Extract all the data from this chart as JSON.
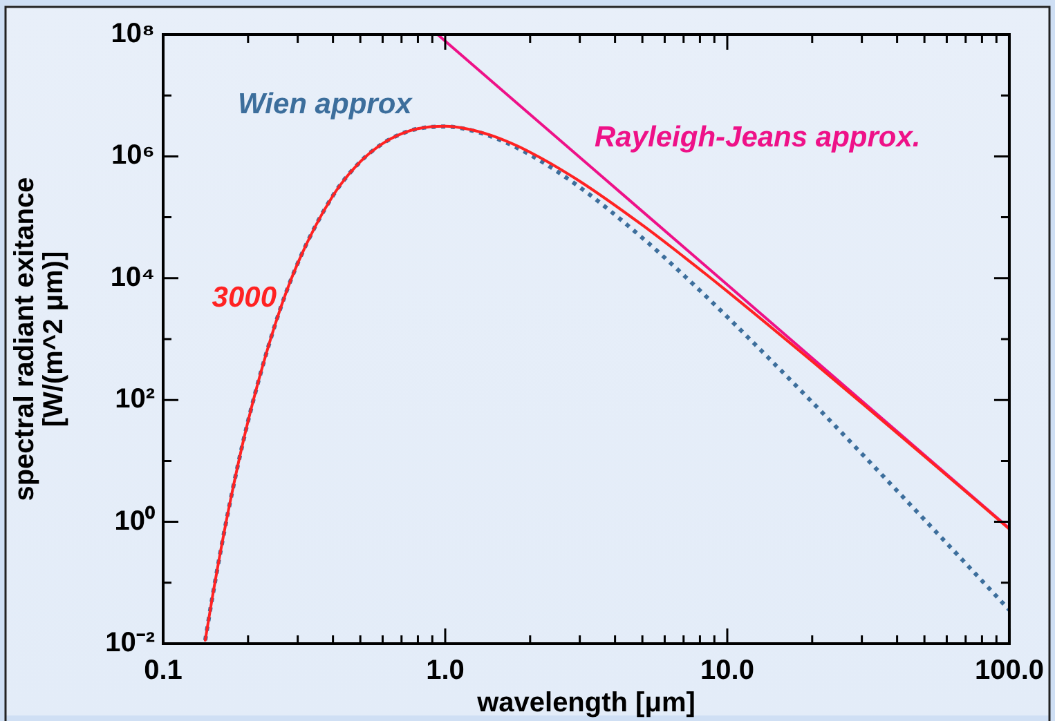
{
  "chart_data": {
    "type": "line",
    "xlabel": "wavelength [μm]",
    "ylabel": "spectral radiant exitance\n[W/(m^2 μm)]",
    "log": "xy",
    "grid": false,
    "legend": false,
    "marker": "none",
    "xlim": [
      0.1,
      100
    ],
    "ylim": [
      0.01,
      100000000
    ],
    "xticks": [
      {
        "value": 0.1,
        "label": "0.1"
      },
      {
        "value": 0.2,
        "label": null
      },
      {
        "value": 0.3,
        "label": null
      },
      {
        "value": 0.4,
        "label": null
      },
      {
        "value": 0.5,
        "label": null
      },
      {
        "value": 0.6,
        "label": null
      },
      {
        "value": 0.7,
        "label": null
      },
      {
        "value": 0.8,
        "label": null
      },
      {
        "value": 0.9,
        "label": null
      },
      {
        "value": 1,
        "label": "1.0"
      },
      {
        "value": 2,
        "label": null
      },
      {
        "value": 3,
        "label": null
      },
      {
        "value": 4,
        "label": null
      },
      {
        "value": 5,
        "label": null
      },
      {
        "value": 6,
        "label": null
      },
      {
        "value": 7,
        "label": null
      },
      {
        "value": 8,
        "label": null
      },
      {
        "value": 9,
        "label": null
      },
      {
        "value": 10,
        "label": "10.0"
      },
      {
        "value": 20,
        "label": null
      },
      {
        "value": 30,
        "label": null
      },
      {
        "value": 40,
        "label": null
      },
      {
        "value": 50,
        "label": null
      },
      {
        "value": 60,
        "label": null
      },
      {
        "value": 70,
        "label": null
      },
      {
        "value": 80,
        "label": null
      },
      {
        "value": 90,
        "label": null
      },
      {
        "value": 100,
        "label": "100.0"
      }
    ],
    "yticks": [
      {
        "value": 0.01,
        "label": "10⁻²"
      },
      {
        "value": 0.1,
        "label": null
      },
      {
        "value": 1,
        "label": "10⁰"
      },
      {
        "value": 10,
        "label": null
      },
      {
        "value": 100,
        "label": "10²"
      },
      {
        "value": 1000,
        "label": null
      },
      {
        "value": 10000,
        "label": "10⁴"
      },
      {
        "value": 100000,
        "label": null
      },
      {
        "value": 1000000,
        "label": "10⁶"
      },
      {
        "value": 10000000,
        "label": null
      },
      {
        "value": 100000000,
        "label": "10⁸"
      }
    ],
    "series": [
      {
        "name": "3000",
        "color": "#ff2222",
        "line_style": "solid",
        "x": [
          0.141,
          0.15,
          0.17,
          0.2,
          0.25,
          0.3,
          0.4,
          0.5,
          0.6,
          0.7,
          0.8,
          1,
          1.2,
          1.5,
          2,
          3,
          5,
          7,
          10,
          20,
          30,
          50,
          70,
          100
        ],
        "values": [
          0.0114,
          0.064,
          1.47,
          45.1,
          1790,
          17600,
          227000,
          817000,
          1625000,
          2357000,
          2851000,
          3118000,
          2817000,
          2100000,
          1169000,
          390000,
          74400,
          22600,
          6080,
          431,
          88.8,
          11.9,
          3.14,
          0.762
        ]
      },
      {
        "name": "Wien approx",
        "color": "#3c6e9c",
        "line_style": "dotted",
        "x": [
          0.141,
          0.15,
          0.17,
          0.2,
          0.25,
          0.3,
          0.4,
          0.5,
          0.6,
          0.7,
          0.8,
          1,
          1.2,
          1.5,
          2,
          3,
          5,
          7,
          10,
          20,
          30,
          50,
          70,
          100
        ],
        "values": [
          0.0114,
          0.064,
          1.47,
          45.1,
          1790,
          17600,
          227000,
          817000,
          1625000,
          2355000,
          2844000,
          3092000,
          2765000,
          2014000,
          1063000,
          311000,
          45900,
          11220,
          2316,
          92,
          13.1,
          1.087,
          0.208,
          0.0357
        ]
      },
      {
        "name": "Rayleigh-Jeans approx.",
        "color": "#ee1188",
        "line_style": "solid",
        "x": [
          0.94,
          100
        ],
        "values": [
          100000000,
          0.78
        ]
      }
    ]
  }
}
